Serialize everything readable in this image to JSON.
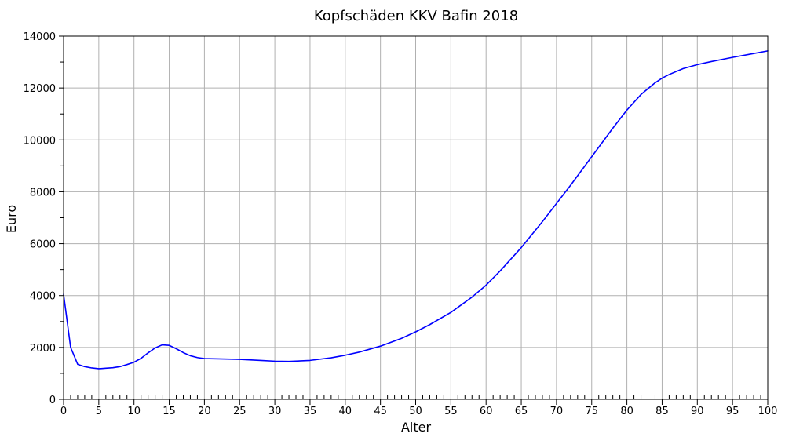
{
  "chart_data": {
    "type": "line",
    "title": "Kopfschäden KKV Bafin 2018",
    "xlabel": "Alter",
    "ylabel": "Euro",
    "xlim": [
      0,
      100
    ],
    "ylim": [
      0,
      14000
    ],
    "grid": true,
    "x_ticks": [
      0,
      5,
      10,
      15,
      20,
      25,
      30,
      35,
      40,
      45,
      50,
      55,
      60,
      65,
      70,
      75,
      80,
      85,
      90,
      95,
      100
    ],
    "x_minor_step": 1,
    "y_ticks": [
      0,
      2000,
      4000,
      6000,
      8000,
      10000,
      12000,
      14000
    ],
    "y_minor_step": 1000,
    "series": [
      {
        "color": "#0000ff",
        "x": [
          0,
          1,
          2,
          3,
          4,
          5,
          6,
          7,
          8,
          9,
          10,
          11,
          12,
          13,
          14,
          15,
          16,
          17,
          18,
          19,
          20,
          22,
          25,
          28,
          30,
          32,
          35,
          38,
          40,
          42,
          45,
          48,
          50,
          52,
          55,
          58,
          60,
          62,
          65,
          68,
          70,
          72,
          75,
          78,
          80,
          82,
          84,
          85,
          86,
          88,
          90,
          92,
          95,
          98,
          100
        ],
        "values": [
          4050,
          2000,
          1350,
          1260,
          1210,
          1180,
          1200,
          1220,
          1260,
          1340,
          1430,
          1580,
          1790,
          1980,
          2100,
          2080,
          1950,
          1800,
          1680,
          1610,
          1570,
          1560,
          1540,
          1500,
          1470,
          1460,
          1500,
          1600,
          1700,
          1820,
          2050,
          2350,
          2600,
          2880,
          3350,
          3940,
          4400,
          4950,
          5850,
          6850,
          7550,
          8250,
          9350,
          10450,
          11150,
          11750,
          12200,
          12380,
          12520,
          12750,
          12900,
          13020,
          13180,
          13330,
          13430
        ]
      }
    ]
  }
}
